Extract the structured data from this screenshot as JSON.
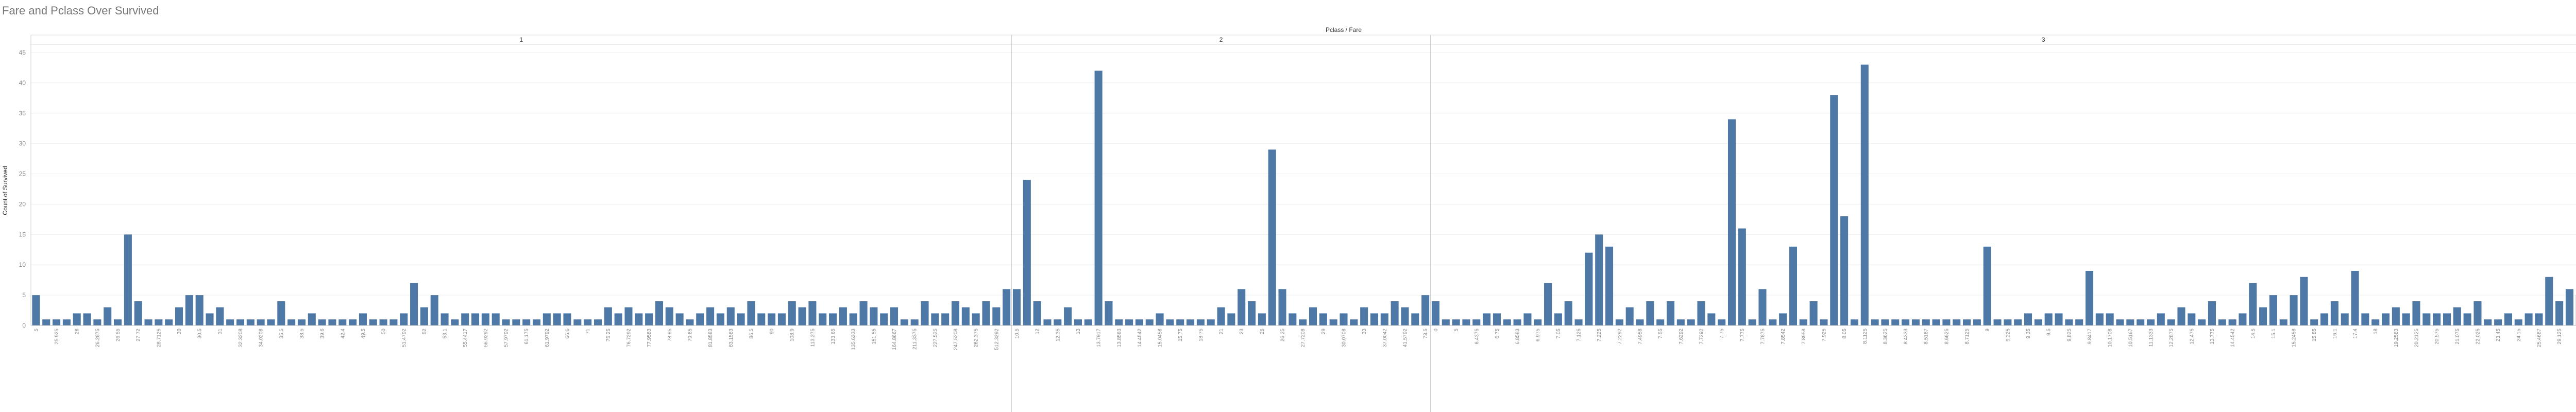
{
  "chart_data": {
    "type": "bar",
    "title": "Fare and Pclass Over Survived",
    "header": "Pclass / Fare",
    "y_label": "Count of Survived",
    "color": "#4e79a7",
    "ylim": [
      0,
      45
    ],
    "yticks": [
      0,
      5,
      10,
      15,
      20,
      25,
      30,
      35,
      40,
      45
    ],
    "grid": true,
    "panels": [
      {
        "name": "1",
        "categories": [
          "5",
          null,
          "25.925",
          null,
          "26",
          null,
          "26.2875",
          null,
          "26.55",
          null,
          "27.72",
          null,
          "28.7125",
          null,
          "30",
          null,
          "30.5",
          null,
          "31",
          null,
          "32.3208",
          null,
          "34.0208",
          null,
          "35.5",
          null,
          "38.5",
          null,
          "39.6",
          null,
          "42.4",
          null,
          "49.5",
          null,
          "50",
          null,
          "51.4792",
          null,
          "52",
          null,
          "53.1",
          null,
          "55.4417",
          null,
          "56.9292",
          null,
          "57.9792",
          null,
          "61.175",
          null,
          "61.9792",
          null,
          "66.6",
          null,
          "71",
          null,
          "75.25",
          null,
          "76.7292",
          null,
          "77.9583",
          null,
          "78.85",
          null,
          "79.65",
          null,
          "81.8583",
          null,
          "83.1583",
          null,
          "86.5",
          null,
          "90",
          null,
          "108.9",
          null,
          "113.275",
          null,
          "133.65",
          null,
          "135.6333",
          null,
          "151.55",
          null,
          "164.8667",
          null,
          "211.3375",
          null,
          "227.525",
          null,
          "247.5208",
          null,
          "262.375",
          null,
          "512.3292",
          null
        ],
        "values": [
          5,
          1,
          1,
          1,
          2,
          2,
          1,
          3,
          1,
          15,
          4,
          1,
          1,
          1,
          3,
          5,
          5,
          2,
          3,
          1,
          1,
          1,
          1,
          1,
          4,
          1,
          1,
          2,
          1,
          1,
          1,
          1,
          2,
          1,
          1,
          1,
          2,
          7,
          3,
          5,
          2,
          1,
          2,
          2,
          2,
          2,
          1,
          1,
          1,
          1,
          2,
          2,
          2,
          1,
          1,
          1,
          3,
          2,
          3,
          2,
          2,
          4,
          3,
          2,
          1,
          2,
          3,
          2,
          3,
          2,
          4,
          2,
          2,
          2,
          4,
          3,
          4,
          2,
          2,
          3,
          2,
          4,
          3,
          2,
          3,
          1,
          1,
          4,
          2,
          2,
          4,
          3,
          2,
          4,
          3,
          6
        ]
      },
      {
        "name": "2",
        "categories": [
          "10.5",
          null,
          "12",
          null,
          "12.35",
          null,
          "13",
          null,
          "13.7917",
          null,
          "13.8583",
          null,
          "14.4542",
          null,
          "15.0458",
          null,
          "15.75",
          null,
          "18.75",
          null,
          "21",
          null,
          "23",
          null,
          "26",
          null,
          "26.25",
          null,
          "27.7208",
          null,
          "29",
          null,
          "30.0708",
          null,
          "33",
          null,
          "37.0042",
          null,
          "41.5792",
          null,
          "73.5"
        ],
        "values": [
          6,
          24,
          4,
          1,
          1,
          3,
          1,
          1,
          42,
          4,
          1,
          1,
          1,
          1,
          2,
          1,
          1,
          1,
          1,
          1,
          3,
          2,
          6,
          4,
          2,
          29,
          6,
          2,
          1,
          3,
          2,
          1,
          2,
          1,
          3,
          2,
          2,
          4,
          3,
          2,
          5
        ]
      },
      {
        "name": "3",
        "categories": [
          "0",
          null,
          "5",
          null,
          "6.4375",
          null,
          "6.75",
          null,
          "6.8583",
          null,
          "6.975",
          null,
          "7.05",
          null,
          "7.125",
          null,
          "7.225",
          null,
          "7.2292",
          null,
          "7.4958",
          null,
          "7.55",
          null,
          "7.6292",
          null,
          "7.7292",
          null,
          "7.75",
          null,
          "7.775",
          null,
          "7.7875",
          null,
          "7.8542",
          null,
          "7.8958",
          null,
          "7.925",
          null,
          "8.05",
          null,
          "8.1125",
          null,
          "8.3625",
          null,
          "8.4333",
          null,
          "8.5167",
          null,
          "8.6625",
          null,
          "8.7125",
          null,
          "9",
          null,
          "9.225",
          null,
          "9.35",
          null,
          "9.5",
          null,
          "9.825",
          null,
          "9.8417",
          null,
          "10.1708",
          null,
          "10.5167",
          null,
          "11.1333",
          null,
          "12.2875",
          null,
          "12.475",
          null,
          "13.775",
          null,
          "14.4542",
          null,
          "14.5",
          null,
          "15.1",
          null,
          "15.2458",
          null,
          "15.85",
          null,
          "16.1",
          null,
          "17.4",
          null,
          "18",
          null,
          "19.2583",
          null,
          "20.2125",
          null,
          "20.575",
          null,
          "21.075",
          null,
          "22.025",
          null,
          "23.45",
          null,
          "24.15",
          null,
          "25.4667",
          null,
          "29.125",
          null,
          "31.3875",
          null,
          "34.375",
          null,
          "46.9",
          null,
          "69.55",
          null
        ],
        "values": [
          4,
          1,
          1,
          1,
          1,
          2,
          2,
          1,
          1,
          2,
          1,
          7,
          2,
          4,
          1,
          12,
          15,
          13,
          1,
          3,
          1,
          4,
          1,
          4,
          1,
          1,
          4,
          2,
          1,
          34,
          16,
          1,
          6,
          1,
          2,
          13,
          1,
          4,
          1,
          38,
          18,
          1,
          43,
          1,
          1,
          1,
          1,
          1,
          1,
          1,
          1,
          1,
          1,
          1,
          13,
          1,
          1,
          1,
          2,
          1,
          2,
          2,
          1,
          1,
          9,
          2,
          2,
          1,
          1,
          1,
          1,
          2,
          1,
          3,
          2,
          1,
          4,
          1,
          1,
          2,
          7,
          3,
          5,
          1,
          5,
          8,
          1,
          2,
          4,
          2,
          9,
          2,
          1,
          2,
          3,
          2,
          4,
          2,
          2,
          2,
          3,
          2,
          4,
          1,
          1,
          2,
          1,
          2,
          2,
          8,
          4,
          6,
          5,
          7,
          4,
          4,
          6,
          6,
          7,
          7
        ]
      }
    ]
  }
}
